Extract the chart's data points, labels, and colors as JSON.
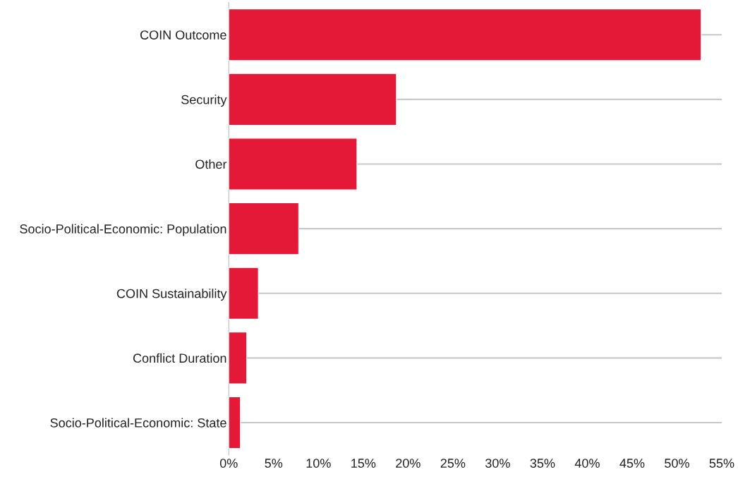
{
  "chart_data": {
    "type": "bar",
    "orientation": "horizontal",
    "categories": [
      "COIN Outcome",
      "Security",
      "Other",
      "Socio-Political-Economic: Population",
      "COIN Sustainability",
      "Conflict Duration",
      "Socio-Political-Economic: State"
    ],
    "values": [
      52.7,
      18.7,
      14.3,
      7.8,
      3.3,
      2.0,
      1.3
    ],
    "color": "#e31937",
    "xlim": [
      0,
      55
    ],
    "xticks": [
      {
        "value": 0,
        "label": "0%"
      },
      {
        "value": 5,
        "label": "5%"
      },
      {
        "value": 10,
        "label": "10%"
      },
      {
        "value": 15,
        "label": "15%"
      },
      {
        "value": 20,
        "label": "20%"
      },
      {
        "value": 25,
        "label": "25%"
      },
      {
        "value": 30,
        "label": "30%"
      },
      {
        "value": 35,
        "label": "35%"
      },
      {
        "value": 40,
        "label": "40%"
      },
      {
        "value": 45,
        "label": "45%"
      },
      {
        "value": 50,
        "label": "50%"
      },
      {
        "value": 55,
        "label": "55%"
      }
    ],
    "grid": "y"
  }
}
